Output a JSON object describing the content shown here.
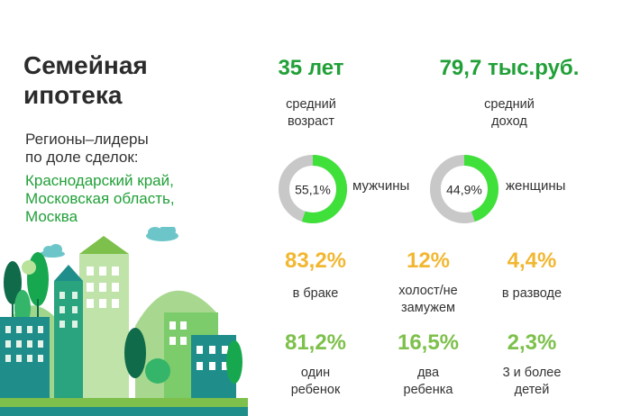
{
  "colors": {
    "title": "#2b2b2b",
    "accent_green": "#21a038",
    "bright_green": "#3fe03a",
    "light_green": "#7dc04b",
    "yellow": "#f2b731",
    "gray": "#c8c8c8",
    "text": "#333333"
  },
  "title": [
    "Семейная",
    "ипотека"
  ],
  "subtitle": [
    "Регионы–лидеры",
    "по доле сделок:"
  ],
  "regions": [
    "Краснодарский край,",
    "Московская область,",
    "Москва"
  ],
  "age": {
    "value": "35 лет",
    "label": [
      "средний",
      "возраст"
    ]
  },
  "income": {
    "value": "79,7 тыс.руб.",
    "label": [
      "средний",
      "доход"
    ]
  },
  "gender": [
    {
      "percent": 55.1,
      "value": "55,1%",
      "label": "мужчины"
    },
    {
      "percent": 44.9,
      "value": "44,9%",
      "label": "женщины"
    }
  ],
  "marital": [
    {
      "value": "83,2%",
      "label": [
        "в браке"
      ]
    },
    {
      "value": "12%",
      "label": [
        "холост/не",
        "замужем"
      ]
    },
    {
      "value": "4,4%",
      "label": [
        "в разводе"
      ]
    }
  ],
  "children": [
    {
      "value": "81,2%",
      "label": [
        "один",
        "ребенок"
      ]
    },
    {
      "value": "16,5%",
      "label": [
        "два",
        "ребенка"
      ]
    },
    {
      "value": "2,3%",
      "label": [
        "3 и более",
        "детей"
      ]
    }
  ],
  "illustration": {
    "icon": "city-landscape-illustration"
  }
}
